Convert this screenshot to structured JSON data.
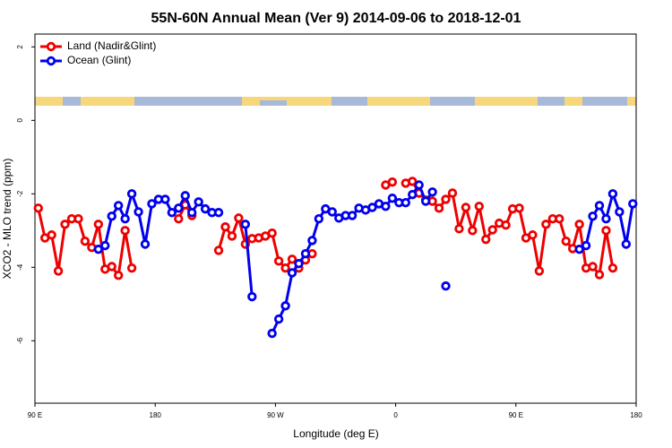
{
  "chart_data": {
    "type": "line",
    "title": "55N-60N Annual Mean (Ver 9)   2014-09-06 to 2018-12-01",
    "x_label": "Longitude (deg E)",
    "y_label": "XCO2 - MLO trend (ppm)",
    "x": [
      92.5,
      97.5,
      102.5,
      107.5,
      112.5,
      117.5,
      122.5,
      127.5,
      132.5,
      137.5,
      142.5,
      147.5,
      152.5,
      157.5,
      162.5,
      167.5,
      172.5,
      177.5,
      182.5,
      187.5,
      192.5,
      197.5,
      202.5,
      207.5,
      212.5,
      217.5,
      222.5,
      227.5,
      232.5,
      237.5,
      242.5,
      247.5,
      252.5,
      257.5,
      262.5,
      267.5,
      272.5,
      277.5,
      282.5,
      287.5,
      292.5,
      297.5,
      302.5,
      307.5,
      312.5,
      317.5,
      322.5,
      327.5,
      332.5,
      337.5,
      342.5,
      347.5,
      352.5,
      357.5,
      362.5,
      367.5,
      372.5,
      377.5,
      382.5,
      387.5,
      392.5,
      397.5,
      402.5,
      407.5,
      412.5,
      417.5,
      422.5,
      427.5,
      432.5,
      437.5,
      442.5,
      447.5,
      452.5,
      457.5,
      462.5,
      467.5,
      472.5,
      477.5,
      482.5,
      487.5,
      492.5,
      497.5,
      502.5,
      507.5,
      512.5,
      517.5,
      522.5,
      527.5,
      532.5,
      537.5
    ],
    "series": [
      {
        "name": "Land (Nadir&Glint)",
        "color": "#ee0000",
        "values": [
          -2.39,
          -3.2,
          -3.12,
          -4.1,
          -2.83,
          -2.68,
          -2.68,
          -3.29,
          -3.46,
          -2.83,
          -4.05,
          -3.98,
          -4.22,
          -3.0,
          -4.02,
          null,
          null,
          null,
          null,
          null,
          null,
          -2.68,
          -2.3,
          -2.59,
          null,
          null,
          null,
          -3.54,
          -2.9,
          -3.15,
          -2.66,
          -3.37,
          -3.22,
          -3.2,
          -3.15,
          -3.07,
          -3.83,
          -4.02,
          -3.78,
          -4.02,
          -3.8,
          -3.63,
          null,
          null,
          null,
          null,
          null,
          null,
          null,
          null,
          null,
          null,
          -1.76,
          -1.68,
          null,
          -1.71,
          -1.66,
          -1.98,
          -2.17,
          -2.2,
          -2.39,
          -2.15,
          -1.98,
          -2.95,
          -2.37,
          -3.0,
          -2.34,
          -3.24,
          -2.98,
          -2.8,
          -2.85,
          -2.41,
          -2.39,
          -3.2,
          -3.12,
          -4.1,
          -2.83,
          -2.68,
          -2.68,
          -3.29,
          -3.49,
          -2.83,
          -4.02,
          -3.98,
          -4.2,
          -3.0,
          -4.02,
          null,
          null,
          null
        ]
      },
      {
        "name": "Ocean (Glint)",
        "color": "#0000ee",
        "values": [
          null,
          null,
          null,
          null,
          null,
          null,
          null,
          null,
          null,
          -3.51,
          -3.41,
          -2.61,
          -2.32,
          -2.68,
          -2.0,
          -2.49,
          -3.37,
          -2.27,
          -2.15,
          -2.15,
          -2.51,
          -2.39,
          -2.05,
          -2.51,
          -2.22,
          -2.41,
          -2.51,
          -2.51,
          null,
          null,
          null,
          -2.83,
          -4.8,
          null,
          null,
          -5.8,
          -5.41,
          -5.05,
          -4.15,
          -3.9,
          -3.63,
          -3.27,
          -2.68,
          -2.41,
          -2.49,
          -2.66,
          -2.59,
          -2.59,
          -2.39,
          -2.44,
          -2.37,
          -2.27,
          -2.34,
          -2.12,
          -2.24,
          -2.24,
          -2.02,
          -1.76,
          -2.2,
          -1.95,
          null,
          -4.51,
          null,
          null,
          null,
          null,
          null,
          null,
          null,
          null,
          null,
          null,
          null,
          null,
          null,
          null,
          null,
          null,
          null,
          null,
          null,
          -3.51,
          -3.41,
          -2.61,
          -2.32,
          -2.68,
          -2.0,
          -2.49,
          -3.37,
          -2.27
        ]
      }
    ],
    "xlim": [
      90,
      540
    ],
    "xticks": [
      {
        "value": 90,
        "label": "90 E"
      },
      180,
      {
        "value": 270,
        "label": "90 W"
      },
      {
        "value": 360,
        "label": "0"
      },
      {
        "value": 450,
        "label": "90 E"
      },
      {
        "value": 540,
        "label": "180"
      }
    ],
    "ylim": [
      -7.7,
      2.35
    ],
    "yticks": [
      2,
      0,
      -2,
      -4,
      -6
    ],
    "legend": "top-left"
  }
}
